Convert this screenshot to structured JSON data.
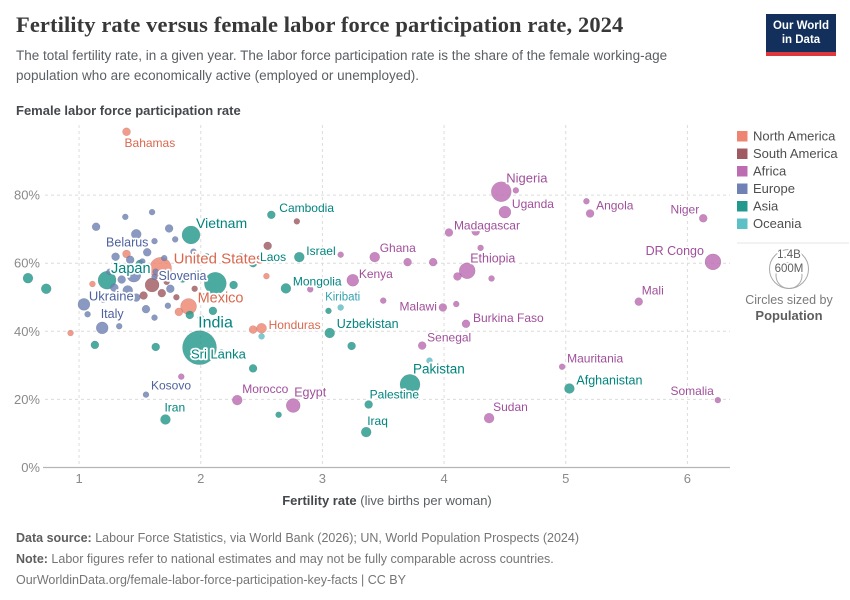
{
  "header": {
    "title": "Fertility rate versus female labor force participation rate, 2024",
    "subtitle": "The total fertility rate, in a given year. The labor force participation rate is the share of the female working-age population who are economically active (employed or unemployed).",
    "logo_line1": "Our World",
    "logo_line2": "in Data"
  },
  "footer": {
    "datasource_label": "Data source:",
    "datasource_text": " Labour Force Statistics, via World Bank (2026); UN, World Population Prospects (2024)",
    "note_label": "Note:",
    "note_text": " Labor figures refer to national estimates and may not be fully comparable across countries.",
    "url_line": "OurWorldinData.org/female-labor-force-participation-key-facts | CC BY"
  },
  "chart_data": {
    "type": "scatter",
    "title": "Fertility rate versus female labor force participation rate, 2024",
    "xlabel_bold": "Fertility rate",
    "xlabel_rest": " (live births per woman)",
    "ylabel": "Female labor force participation rate",
    "x_axis": {
      "ticks": [
        1,
        2,
        3,
        4,
        5,
        6
      ],
      "range": [
        0.72,
        6.35
      ]
    },
    "y_axis": {
      "tick_values": [
        0,
        20,
        40,
        60,
        80
      ],
      "tick_labels": [
        "0%",
        "20%",
        "40%",
        "60%",
        "80%"
      ],
      "range": [
        0,
        100
      ],
      "unit": "%"
    },
    "grid": true,
    "legend_position": "right",
    "region_colors": {
      "NA": {
        "name": "North America",
        "fill": "#EE8572",
        "label": "#d9684f"
      },
      "SA": {
        "name": "South America",
        "fill": "#A05B62",
        "label": "#8e4c55"
      },
      "AF": {
        "name": "Africa",
        "fill": "#BC6DB2",
        "label": "#a04f9b"
      },
      "EU": {
        "name": "Europe",
        "fill": "#7082B5",
        "label": "#4e629e"
      },
      "AS": {
        "name": "Asia",
        "fill": "#23988C",
        "label": "#00847e"
      },
      "OC": {
        "name": "Oceania",
        "fill": "#5CC0C7",
        "label": "#35a2ae"
      }
    },
    "legend_order": [
      "NA",
      "SA",
      "AF",
      "EU",
      "AS",
      "OC"
    ],
    "size_legend": {
      "big_label": "1.4B",
      "small_label": "600M",
      "caption1": "Circles sized by",
      "caption2": "Population"
    },
    "series": [
      {
        "n": "Bahamas",
        "f": 1.39,
        "p": 98.6,
        "g": "NA",
        "r": 4,
        "l": {
          "dx": -2,
          "dy": 15,
          "a": "start",
          "fs": 12
        }
      },
      {
        "n": "Vietnam",
        "f": 1.92,
        "p": 68.3,
        "g": "AS",
        "r": 9,
        "l": {
          "dx": 5,
          "dy": -7,
          "a": "start",
          "fs": 14
        }
      },
      {
        "n": "Cambodia",
        "f": 2.58,
        "p": 74.2,
        "g": "AS",
        "r": 4,
        "l": {
          "dx": 8,
          "dy": -3,
          "a": "start",
          "fs": 12
        }
      },
      {
        "n": "Belarus",
        "f": 1.47,
        "p": 68.5,
        "g": "EU",
        "r": 5,
        "l": {
          "dx": -9,
          "dy": 12,
          "a": "middle",
          "fs": 12.5
        }
      },
      {
        "n": "United States",
        "f": 1.67,
        "p": 58.5,
        "g": "NA",
        "r": 11,
        "l": {
          "dx": 13,
          "dy": -5,
          "a": "start",
          "fs": 15
        }
      },
      {
        "n": "Laos",
        "f": 2.43,
        "p": 60.0,
        "g": "AS",
        "r": 4,
        "l": {
          "dx": 7,
          "dy": -2,
          "a": "start",
          "fs": 12
        }
      },
      {
        "n": "Israel",
        "f": 2.81,
        "p": 61.8,
        "g": "AS",
        "r": 5,
        "l": {
          "dx": 7,
          "dy": -2,
          "a": "start",
          "fs": 12
        }
      },
      {
        "n": "Ghana",
        "f": 3.43,
        "p": 61.8,
        "g": "AF",
        "r": 5,
        "l": {
          "dx": 5,
          "dy": -5,
          "a": "start",
          "fs": 12
        }
      },
      {
        "n": "Kenya",
        "f": 3.25,
        "p": 55.0,
        "g": "AF",
        "r": 6,
        "l": {
          "dx": 6,
          "dy": -2,
          "a": "start",
          "fs": 12
        }
      },
      {
        "n": "Mongolia",
        "f": 2.7,
        "p": 52.6,
        "g": "AS",
        "r": 5,
        "l": {
          "dx": 7,
          "dy": -3,
          "a": "start",
          "fs": 12
        }
      },
      {
        "n": "Kiribati",
        "f": 3.15,
        "p": 47.0,
        "g": "OC",
        "r": 3,
        "l": {
          "dx": 2,
          "dy": -7,
          "a": "middle",
          "fs": 11.5
        }
      },
      {
        "n": "Honduras",
        "f": 2.5,
        "p": 40.9,
        "g": "NA",
        "r": 5,
        "l": {
          "dx": 7,
          "dy": 1,
          "a": "start",
          "fs": 12
        }
      },
      {
        "n": "Uzbekistan",
        "f": 3.06,
        "p": 39.5,
        "g": "AS",
        "r": 5,
        "l": {
          "dx": 7,
          "dy": -5,
          "a": "start",
          "fs": 12.5
        }
      },
      {
        "n": "Malawi",
        "f": 3.99,
        "p": 47.0,
        "g": "AF",
        "r": 4,
        "l": {
          "dx": -6,
          "dy": 3,
          "a": "end",
          "fs": 12
        }
      },
      {
        "n": "Senegal",
        "f": 3.82,
        "p": 35.8,
        "g": "AF",
        "r": 4,
        "l": {
          "dx": 5,
          "dy": -4,
          "a": "start",
          "fs": 12
        }
      },
      {
        "n": "Burkina Faso",
        "f": 4.18,
        "p": 42.2,
        "g": "AF",
        "r": 4,
        "l": {
          "dx": 7,
          "dy": -2,
          "a": "start",
          "fs": 12
        }
      },
      {
        "n": "Ethiopia",
        "f": 4.19,
        "p": 57.8,
        "g": "AF",
        "r": 8,
        "l": {
          "dx": 3,
          "dy": -8,
          "a": "start",
          "fs": 12.5
        }
      },
      {
        "n": "Madagascar",
        "f": 4.04,
        "p": 69.0,
        "g": "AF",
        "r": 4,
        "l": {
          "dx": 5,
          "dy": -3,
          "a": "start",
          "fs": 12
        }
      },
      {
        "n": "Nigeria",
        "f": 4.47,
        "p": 81.0,
        "g": "AF",
        "r": 10,
        "l": {
          "dx": 5,
          "dy": -9,
          "a": "start",
          "fs": 13
        }
      },
      {
        "n": "Uganda",
        "f": 4.5,
        "p": 75.0,
        "g": "AF",
        "r": 6,
        "l": {
          "dx": 7,
          "dy": -4,
          "a": "start",
          "fs": 12
        }
      },
      {
        "n": "Angola",
        "f": 5.2,
        "p": 74.6,
        "g": "AF",
        "r": 4,
        "l": {
          "dx": 6,
          "dy": -4,
          "a": "start",
          "fs": 12
        }
      },
      {
        "n": "Niger",
        "f": 6.13,
        "p": 73.2,
        "g": "AF",
        "r": 4,
        "l": {
          "dx": -4,
          "dy": -5,
          "a": "end",
          "fs": 12
        }
      },
      {
        "n": "DR Congo",
        "f": 6.21,
        "p": 60.4,
        "g": "AF",
        "r": 8,
        "l": {
          "dx": -9,
          "dy": -7,
          "a": "end",
          "fs": 12.5
        }
      },
      {
        "n": "Mali",
        "f": 5.6,
        "p": 48.7,
        "g": "AF",
        "r": 4,
        "l": {
          "dx": 3,
          "dy": -7,
          "a": "start",
          "fs": 12
        }
      },
      {
        "n": "Mauritania",
        "f": 4.97,
        "p": 29.6,
        "g": "AF",
        "r": 3,
        "l": {
          "dx": 5,
          "dy": -4,
          "a": "start",
          "fs": 12
        }
      },
      {
        "n": "Afghanistan",
        "f": 5.03,
        "p": 23.2,
        "g": "AS",
        "r": 5,
        "l": {
          "dx": 7,
          "dy": -4,
          "a": "start",
          "fs": 12.5
        }
      },
      {
        "n": "Somalia",
        "f": 6.25,
        "p": 19.8,
        "g": "AF",
        "r": 3,
        "l": {
          "dx": -4,
          "dy": -5,
          "a": "end",
          "fs": 12
        }
      },
      {
        "n": "Sudan",
        "f": 4.37,
        "p": 14.5,
        "g": "AF",
        "r": 5,
        "l": {
          "dx": 4,
          "dy": -7,
          "a": "start",
          "fs": 12
        }
      },
      {
        "n": "Pakistan",
        "f": 3.72,
        "p": 24.4,
        "g": "AS",
        "r": 10,
        "l": {
          "dx": 3,
          "dy": -11,
          "a": "start",
          "fs": 13.5
        }
      },
      {
        "n": "Palestine",
        "f": 3.38,
        "p": 18.5,
        "g": "AS",
        "r": 4,
        "l": {
          "dx": 1,
          "dy": -6,
          "a": "start",
          "fs": 12
        }
      },
      {
        "n": "Iraq",
        "f": 3.36,
        "p": 10.4,
        "g": "AS",
        "r": 5,
        "l": {
          "dx": 1,
          "dy": -7,
          "a": "start",
          "fs": 12
        }
      },
      {
        "n": "India",
        "f": 1.99,
        "p": 35.2,
        "g": "AS",
        "r": 17,
        "l": {
          "dx": 16,
          "dy": -20,
          "a": "middle",
          "fs": 16
        }
      },
      {
        "n": "Sri Lanka",
        "f": 2.17,
        "p": 33.8,
        "g": "AS",
        "r": 3,
        "l": {
          "dx": -3,
          "dy": 6,
          "a": "middle",
          "fs": 13
        }
      },
      {
        "n": "Kosovo",
        "f": 1.55,
        "p": 21.4,
        "g": "EU",
        "r": 3,
        "l": {
          "dx": 5,
          "dy": -5,
          "a": "start",
          "fs": 12
        }
      },
      {
        "n": "Iran",
        "f": 1.71,
        "p": 14.1,
        "g": "AS",
        "r": 5,
        "l": {
          "dx": -1,
          "dy": -8,
          "a": "start",
          "fs": 12
        }
      },
      {
        "n": "Morocco",
        "f": 2.3,
        "p": 19.8,
        "g": "AF",
        "r": 5,
        "l": {
          "dx": 5,
          "dy": -7,
          "a": "start",
          "fs": 12
        }
      },
      {
        "n": "Egypt",
        "f": 2.76,
        "p": 18.2,
        "g": "AF",
        "r": 7,
        "l": {
          "dx": 1,
          "dy": -9,
          "a": "start",
          "fs": 12.5
        }
      },
      {
        "n": "Japan",
        "f": 1.23,
        "p": 55.0,
        "g": "AS",
        "r": 9,
        "l": {
          "dx": 4,
          "dy": -7,
          "a": "start",
          "fs": 14.5
        }
      },
      {
        "n": "Slovenia",
        "f": 1.62,
        "p": 56.0,
        "g": "EU",
        "r": 3,
        "l": {
          "dx": 4,
          "dy": 3,
          "a": "start",
          "fs": 12.5
        }
      },
      {
        "n": "Ukraine",
        "f": 1.04,
        "p": 47.9,
        "g": "EU",
        "r": 6,
        "l": {
          "dx": 5,
          "dy": -4,
          "a": "start",
          "fs": 13
        }
      },
      {
        "n": "Italy",
        "f": 1.19,
        "p": 41.0,
        "g": "EU",
        "r": 6,
        "l": {
          "dx": 10,
          "dy": -10,
          "a": "middle",
          "fs": 12.5
        }
      },
      {
        "n": "Mexico",
        "f": 1.9,
        "p": 47.3,
        "g": "NA",
        "r": 8,
        "l": {
          "dx": 9,
          "dy": -4,
          "a": "start",
          "fs": 14.5
        }
      },
      {
        "f": 0.58,
        "p": 55.6,
        "g": "AS",
        "r": 5
      },
      {
        "f": 0.73,
        "p": 52.5,
        "g": "AS",
        "r": 5
      },
      {
        "f": 0.93,
        "p": 39.5,
        "g": "NA",
        "r": 3
      },
      {
        "f": 1.11,
        "p": 53.9,
        "g": "NA",
        "r": 3
      },
      {
        "f": 1.14,
        "p": 70.7,
        "g": "EU",
        "r": 4
      },
      {
        "f": 1.38,
        "p": 73.6,
        "g": "EU",
        "r": 3
      },
      {
        "f": 1.6,
        "p": 75.0,
        "g": "EU",
        "r": 3
      },
      {
        "f": 1.74,
        "p": 70.2,
        "g": "EU",
        "r": 4
      },
      {
        "f": 1.3,
        "p": 61.9,
        "g": "EU",
        "r": 4
      },
      {
        "f": 1.39,
        "p": 62.7,
        "g": "NA",
        "r": 4
      },
      {
        "f": 1.56,
        "p": 63.2,
        "g": "EU",
        "r": 4
      },
      {
        "f": 1.62,
        "p": 66.5,
        "g": "EU",
        "r": 3
      },
      {
        "f": 1.79,
        "p": 67.0,
        "g": "EU",
        "r": 3
      },
      {
        "f": 1.45,
        "p": 56.5,
        "g": "EU",
        "r": 7
      },
      {
        "f": 1.5,
        "p": 59.8,
        "g": "AS",
        "r": 4
      },
      {
        "f": 1.35,
        "p": 55.2,
        "g": "EU",
        "r": 4
      },
      {
        "f": 1.25,
        "p": 57.5,
        "g": "EU",
        "r": 3
      },
      {
        "f": 1.29,
        "p": 52.8,
        "g": "EU",
        "r": 4
      },
      {
        "f": 1.4,
        "p": 52.0,
        "g": "EU",
        "r": 5
      },
      {
        "f": 1.47,
        "p": 49.9,
        "g": "EU",
        "r": 4
      },
      {
        "f": 1.53,
        "p": 50.5,
        "g": "SA",
        "r": 4
      },
      {
        "f": 1.6,
        "p": 53.6,
        "g": "SA",
        "r": 7
      },
      {
        "f": 1.68,
        "p": 51.2,
        "g": "SA",
        "r": 4
      },
      {
        "f": 1.72,
        "p": 54.5,
        "g": "SA",
        "r": 3
      },
      {
        "f": 1.8,
        "p": 50.0,
        "g": "SA",
        "r": 3
      },
      {
        "f": 1.95,
        "p": 52.5,
        "g": "SA",
        "r": 3
      },
      {
        "f": 1.55,
        "p": 46.5,
        "g": "EU",
        "r": 4
      },
      {
        "f": 1.62,
        "p": 44.0,
        "g": "EU",
        "r": 3
      },
      {
        "f": 1.73,
        "p": 47.5,
        "g": "EU",
        "r": 3
      },
      {
        "f": 1.82,
        "p": 45.7,
        "g": "NA",
        "r": 4
      },
      {
        "f": 1.91,
        "p": 44.8,
        "g": "AS",
        "r": 4
      },
      {
        "f": 2.0,
        "p": 44.0,
        "g": "AS",
        "r": 3
      },
      {
        "f": 1.42,
        "p": 61.0,
        "g": "EU",
        "r": 4
      },
      {
        "f": 1.52,
        "p": 60.5,
        "g": "EU",
        "r": 3
      },
      {
        "f": 1.63,
        "p": 57.5,
        "g": "EU",
        "r": 3
      },
      {
        "f": 1.68,
        "p": 56.0,
        "g": "EU",
        "r": 3
      },
      {
        "f": 1.75,
        "p": 52.5,
        "g": "EU",
        "r": 4
      },
      {
        "f": 1.85,
        "p": 55.5,
        "g": "AS",
        "r": 4
      },
      {
        "f": 1.87,
        "p": 60.9,
        "g": "EU",
        "r": 3
      },
      {
        "f": 1.94,
        "p": 63.4,
        "g": "EU",
        "r": 3
      },
      {
        "f": 2.05,
        "p": 62.0,
        "g": "AS",
        "r": 3
      },
      {
        "f": 1.7,
        "p": 61.5,
        "g": "EU",
        "r": 3
      },
      {
        "f": 1.2,
        "p": 49.6,
        "g": "EU",
        "r": 4
      },
      {
        "f": 1.07,
        "p": 45.0,
        "g": "EU",
        "r": 3
      },
      {
        "f": 1.25,
        "p": 44.5,
        "g": "EU",
        "r": 3
      },
      {
        "f": 1.33,
        "p": 41.5,
        "g": "EU",
        "r": 3
      },
      {
        "f": 1.13,
        "p": 36.0,
        "g": "AS",
        "r": 4
      },
      {
        "f": 1.63,
        "p": 35.4,
        "g": "AS",
        "r": 4
      },
      {
        "f": 1.84,
        "p": 26.7,
        "g": "AF",
        "r": 3
      },
      {
        "f": 2.12,
        "p": 54.1,
        "g": "AS",
        "r": 11
      },
      {
        "f": 2.27,
        "p": 53.6,
        "g": "AS",
        "r": 4
      },
      {
        "f": 2.24,
        "p": 49.2,
        "g": "NA",
        "r": 4
      },
      {
        "f": 2.02,
        "p": 50.0,
        "g": "NA",
        "r": 4
      },
      {
        "f": 2.1,
        "p": 46.0,
        "g": "AS",
        "r": 4
      },
      {
        "f": 1.97,
        "p": 57.0,
        "g": "AS",
        "r": 3
      },
      {
        "f": 2.54,
        "p": 56.2,
        "g": "NA",
        "r": 3
      },
      {
        "f": 2.33,
        "p": 62.0,
        "g": "AS",
        "r": 3
      },
      {
        "f": 2.55,
        "p": 65.1,
        "g": "SA",
        "r": 4
      },
      {
        "f": 2.79,
        "p": 72.3,
        "g": "SA",
        "r": 3
      },
      {
        "f": 2.43,
        "p": 29.1,
        "g": "AS",
        "r": 4
      },
      {
        "f": 2.64,
        "p": 15.5,
        "g": "AS",
        "r": 3
      },
      {
        "f": 2.43,
        "p": 40.5,
        "g": "NA",
        "r": 4
      },
      {
        "f": 2.5,
        "p": 38.5,
        "g": "OC",
        "r": 3
      },
      {
        "f": 2.9,
        "p": 52.3,
        "g": "AF",
        "r": 3
      },
      {
        "f": 3.05,
        "p": 46.0,
        "g": "AS",
        "r": 3
      },
      {
        "f": 3.24,
        "p": 35.7,
        "g": "AS",
        "r": 4
      },
      {
        "f": 3.88,
        "p": 31.4,
        "g": "OC",
        "r": 3
      },
      {
        "f": 3.7,
        "p": 60.3,
        "g": "AF",
        "r": 4
      },
      {
        "f": 3.91,
        "p": 60.3,
        "g": "AF",
        "r": 4
      },
      {
        "f": 3.15,
        "p": 62.5,
        "g": "AF",
        "r": 3
      },
      {
        "f": 3.5,
        "p": 49.0,
        "g": "AF",
        "r": 3
      },
      {
        "f": 4.26,
        "p": 69.3,
        "g": "AF",
        "r": 4
      },
      {
        "f": 4.59,
        "p": 81.4,
        "g": "AF",
        "r": 3
      },
      {
        "f": 5.17,
        "p": 78.2,
        "g": "AF",
        "r": 3
      },
      {
        "f": 4.11,
        "p": 56.1,
        "g": "AF",
        "r": 4
      },
      {
        "f": 4.39,
        "p": 55.5,
        "g": "AF",
        "r": 3
      },
      {
        "f": 4.3,
        "p": 64.5,
        "g": "AF",
        "r": 3
      },
      {
        "f": 4.1,
        "p": 48.0,
        "g": "AF",
        "r": 3
      }
    ]
  }
}
